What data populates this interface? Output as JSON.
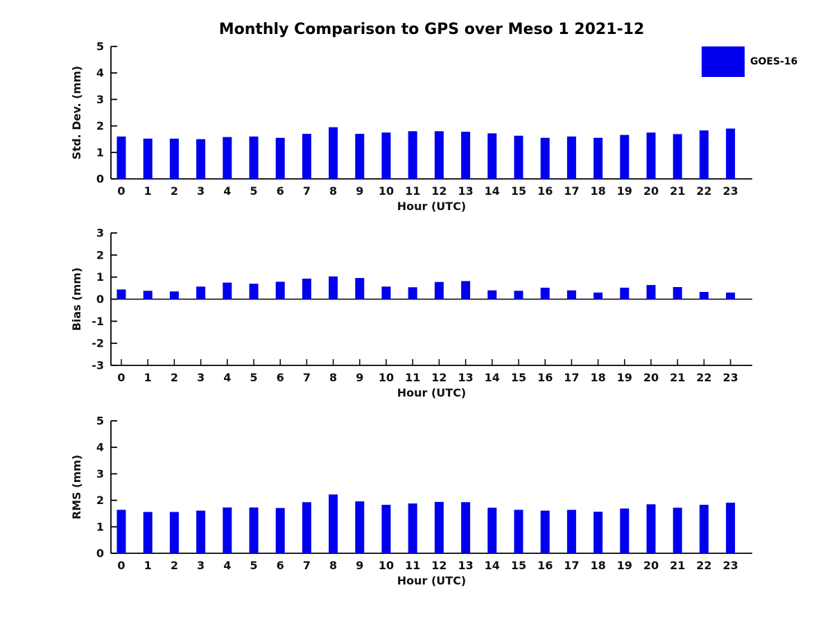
{
  "title": "Monthly Comparison to GPS over Meso 1 2021-12",
  "legend": {
    "label": "GOES-16",
    "color": "#0000EE"
  },
  "colors": {
    "bar": "#0000EE",
    "axis": "#000000",
    "text": "#111111",
    "background": "#ffffff"
  },
  "chart_data": [
    {
      "id": "std-dev",
      "type": "bar",
      "title": "",
      "xlabel": "Hour (UTC)",
      "ylabel": "Std. Dev. (mm)",
      "ylim": [
        0,
        5
      ],
      "yticks": [
        0,
        1,
        2,
        3,
        4,
        5
      ],
      "grid": false,
      "legend_position": "outside-top-right",
      "series_name": "GOES-16",
      "categories": [
        "0",
        "1",
        "2",
        "3",
        "4",
        "5",
        "6",
        "7",
        "8",
        "9",
        "10",
        "11",
        "12",
        "13",
        "14",
        "15",
        "16",
        "17",
        "18",
        "19",
        "20",
        "21",
        "22",
        "23"
      ],
      "values": [
        1.6,
        1.52,
        1.52,
        1.5,
        1.58,
        1.6,
        1.55,
        1.7,
        1.95,
        1.7,
        1.75,
        1.8,
        1.8,
        1.78,
        1.72,
        1.63,
        1.55,
        1.6,
        1.55,
        1.66,
        1.75,
        1.69,
        1.83,
        1.9
      ]
    },
    {
      "id": "bias",
      "type": "bar",
      "title": "",
      "xlabel": "Hour (UTC)",
      "ylabel": "Bias (mm)",
      "ylim": [
        -3,
        3
      ],
      "yticks": [
        -3,
        -2,
        -1,
        0,
        1,
        2,
        3
      ],
      "grid": false,
      "series_name": "GOES-16",
      "categories": [
        "0",
        "1",
        "2",
        "3",
        "4",
        "5",
        "6",
        "7",
        "8",
        "9",
        "10",
        "11",
        "12",
        "13",
        "14",
        "15",
        "16",
        "17",
        "18",
        "19",
        "20",
        "21",
        "22",
        "23"
      ],
      "values": [
        0.44,
        0.38,
        0.35,
        0.57,
        0.75,
        0.7,
        0.79,
        0.93,
        1.03,
        0.96,
        0.57,
        0.54,
        0.78,
        0.82,
        0.4,
        0.38,
        0.52,
        0.4,
        0.3,
        0.52,
        0.64,
        0.55,
        0.33,
        0.3
      ]
    },
    {
      "id": "rms",
      "type": "bar",
      "title": "",
      "xlabel": "Hour (UTC)",
      "ylabel": "RMS (mm)",
      "ylim": [
        0,
        5
      ],
      "yticks": [
        0,
        1,
        2,
        3,
        4,
        5
      ],
      "grid": false,
      "series_name": "GOES-16",
      "categories": [
        "0",
        "1",
        "2",
        "3",
        "4",
        "5",
        "6",
        "7",
        "8",
        "9",
        "10",
        "11",
        "12",
        "13",
        "14",
        "15",
        "16",
        "17",
        "18",
        "19",
        "20",
        "21",
        "22",
        "23"
      ],
      "values": [
        1.64,
        1.56,
        1.56,
        1.61,
        1.73,
        1.73,
        1.71,
        1.93,
        2.22,
        1.96,
        1.83,
        1.88,
        1.94,
        1.93,
        1.72,
        1.64,
        1.61,
        1.64,
        1.57,
        1.69,
        1.85,
        1.72,
        1.83,
        1.91
      ]
    }
  ]
}
